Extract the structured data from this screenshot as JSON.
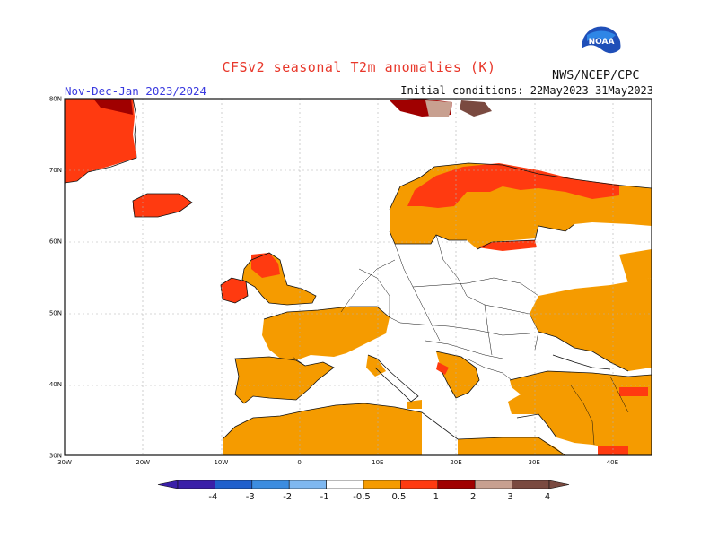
{
  "header": {
    "title": "CFSv2 seasonal T2m anomalies (K)",
    "period": "Nov-Dec-Jan 2023/2024",
    "initial_conditions": "Initial conditions: 22May2023-31May2023",
    "agency": "NWS/NCEP/CPC",
    "logo_text": "NOAA"
  },
  "map": {
    "lat_labels": [
      "80N",
      "70N",
      "60N",
      "50N",
      "40N",
      "30N"
    ],
    "lon_labels": [
      "30W",
      "20W",
      "10W",
      "0",
      "10E",
      "20E",
      "30E",
      "40E"
    ],
    "extent": {
      "lon": [
        -30,
        45
      ],
      "lat": [
        30,
        80
      ]
    }
  },
  "colorbar": {
    "labels": [
      "-4",
      "-3",
      "-2",
      "-1",
      "-0.5",
      "0.5",
      "1",
      "2",
      "3",
      "4"
    ],
    "colors": [
      "#3a1fa8",
      "#2060cc",
      "#3c8de0",
      "#7fb8f0",
      "#ffffff",
      "#f59b00",
      "#ff3a10",
      "#a00000",
      "#c8a090",
      "#7a4a40"
    ]
  },
  "anomaly_classes": {
    "0.5-1": "#f59b00",
    "1-2": "#ff3a10",
    "2-3": "#a00000",
    "3-4": "#c8a090",
    "4+": "#7a4a40"
  }
}
